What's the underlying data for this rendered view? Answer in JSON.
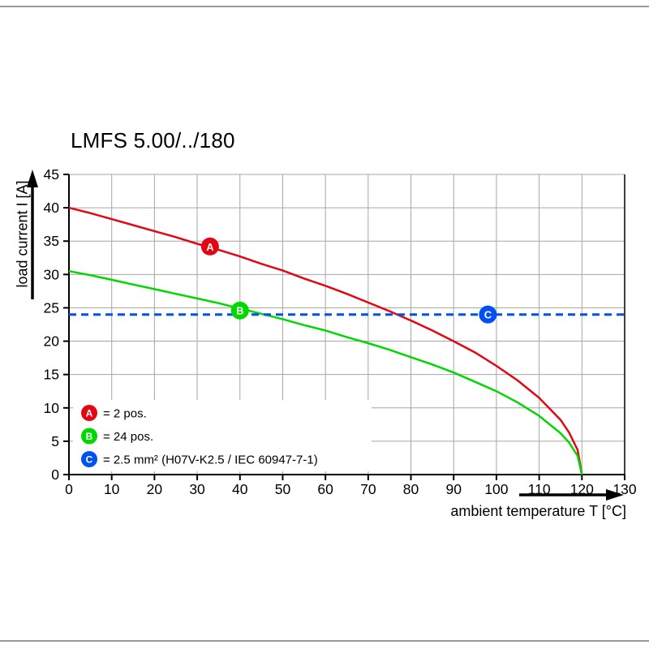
{
  "page": {
    "title": "LMFS 5.00/../180"
  },
  "colors": {
    "grid": "#a6a6a6",
    "axis": "#000000",
    "page_rule": "#999999",
    "red": "#e30613",
    "green": "#00d800",
    "blue": "#0051ef"
  },
  "chart_data": {
    "type": "line",
    "title": "LMFS 5.00/../180",
    "xlabel": "ambient temperature T [°C]",
    "ylabel": "load current I [A]",
    "xlim": [
      0,
      130
    ],
    "ylim": [
      0,
      45
    ],
    "xticks": [
      0,
      10,
      20,
      30,
      40,
      50,
      60,
      70,
      80,
      90,
      100,
      110,
      120,
      130
    ],
    "yticks": [
      0,
      5,
      10,
      15,
      20,
      25,
      30,
      35,
      40,
      45
    ],
    "grid": true,
    "legend_position": "lower-left",
    "series": [
      {
        "name": "A",
        "label": "= 2 pos.",
        "color": "#e30613",
        "style": "solid",
        "x": [
          0,
          5,
          10,
          15,
          20,
          25,
          30,
          35,
          40,
          45,
          50,
          55,
          60,
          65,
          70,
          75,
          80,
          85,
          90,
          95,
          100,
          105,
          110,
          115,
          117,
          119,
          120
        ],
        "y": [
          40,
          39.2,
          38.3,
          37.4,
          36.5,
          35.6,
          34.6,
          33.7,
          32.7,
          31.6,
          30.6,
          29.4,
          28.3,
          27.1,
          25.8,
          24.5,
          23.1,
          21.6,
          20,
          18.3,
          16.3,
          14.1,
          11.5,
          8.2,
          6.3,
          3.7,
          0
        ],
        "marker": {
          "x": 33,
          "y": 34.2
        }
      },
      {
        "name": "B",
        "label": "= 24 pos.",
        "color": "#00d800",
        "style": "solid",
        "x": [
          0,
          5,
          10,
          15,
          20,
          25,
          30,
          35,
          40,
          45,
          50,
          55,
          60,
          65,
          70,
          75,
          80,
          85,
          90,
          95,
          100,
          105,
          110,
          115,
          117,
          119,
          120
        ],
        "y": [
          30.5,
          29.9,
          29.2,
          28.5,
          27.8,
          27.1,
          26.4,
          25.7,
          24.9,
          24.1,
          23.3,
          22.4,
          21.6,
          20.6,
          19.7,
          18.7,
          17.6,
          16.5,
          15.3,
          13.9,
          12.5,
          10.8,
          8.8,
          6.2,
          4.8,
          2.8,
          0
        ],
        "marker": {
          "x": 40,
          "y": 24.6
        }
      },
      {
        "name": "C",
        "label": "= 2.5 mm² (H07V-K2.5 / IEC 60947-7-1)",
        "color": "#0051ef",
        "style": "dashed",
        "x": [
          0,
          130
        ],
        "y": [
          24,
          24
        ],
        "marker": {
          "x": 98,
          "y": 24
        }
      }
    ]
  }
}
